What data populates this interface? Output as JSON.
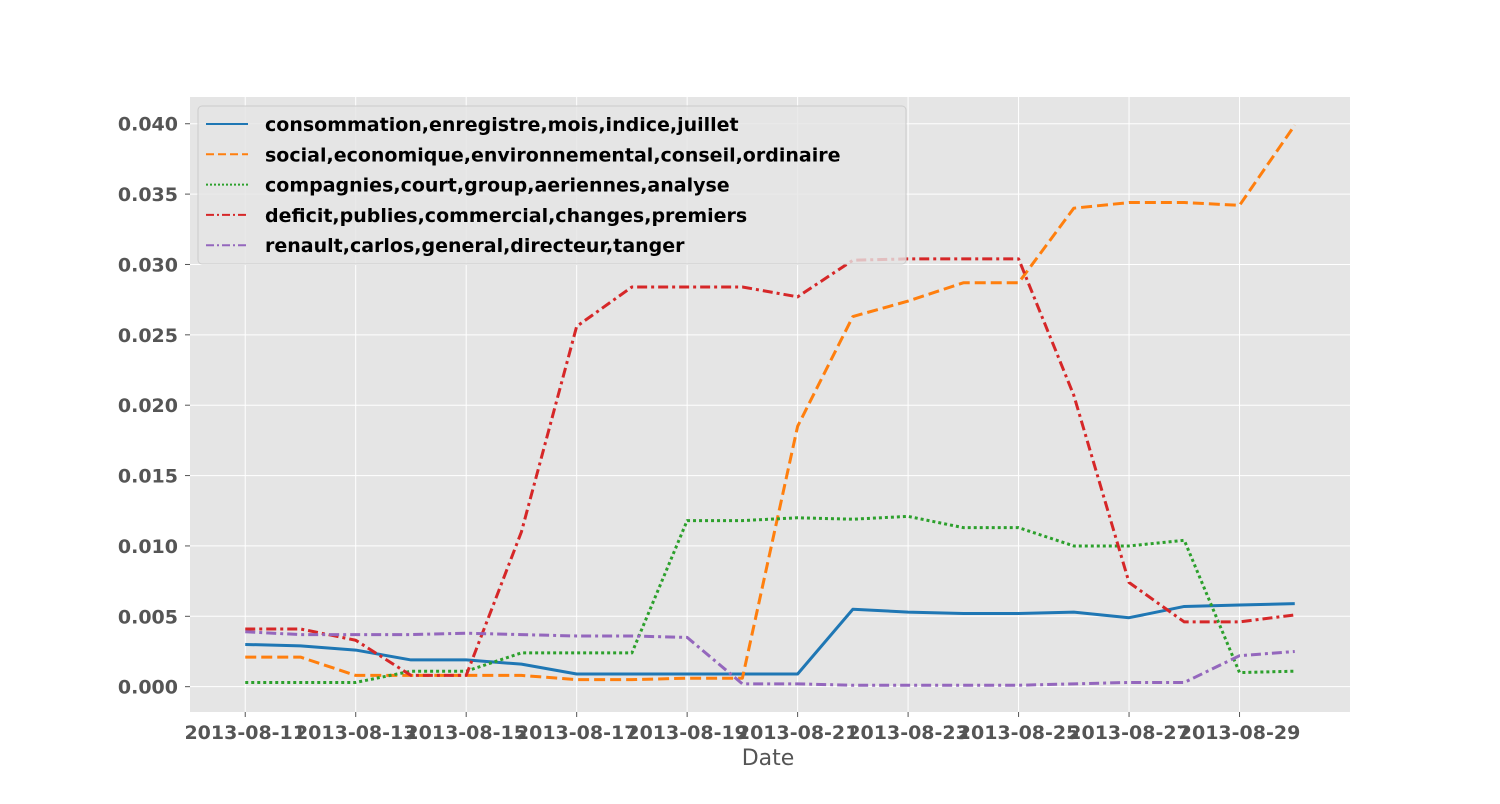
{
  "chart_data": {
    "type": "line",
    "title": "",
    "xlabel": "Date",
    "ylabel": "",
    "grid": true,
    "legend_position": "top-left",
    "xlim": [
      "2013-08-10",
      "2013-08-31"
    ],
    "ylim": [
      -0.0018,
      0.0419
    ],
    "x_ticks": [
      "2013-08-11",
      "2013-08-13",
      "2013-08-15",
      "2013-08-17",
      "2013-08-19",
      "2013-08-21",
      "2013-08-23",
      "2013-08-25",
      "2013-08-27",
      "2013-08-29"
    ],
    "y_ticks": [
      "0.000",
      "0.005",
      "0.010",
      "0.015",
      "0.020",
      "0.025",
      "0.030",
      "0.035",
      "0.040"
    ],
    "x": [
      "2013-08-11",
      "2013-08-12",
      "2013-08-13",
      "2013-08-14",
      "2013-08-15",
      "2013-08-16",
      "2013-08-17",
      "2013-08-18",
      "2013-08-19",
      "2013-08-20",
      "2013-08-21",
      "2013-08-22",
      "2013-08-23",
      "2013-08-24",
      "2013-08-25",
      "2013-08-26",
      "2013-08-27",
      "2013-08-28",
      "2013-08-29",
      "2013-08-30"
    ],
    "series": [
      {
        "name": "consommation,enregistre,mois,indice,juillet",
        "color": "#1f77b4",
        "dash": "solid",
        "values": [
          0.003,
          0.0029,
          0.0026,
          0.0019,
          0.0019,
          0.0016,
          0.0009,
          0.0009,
          0.0009,
          0.0009,
          0.0009,
          0.0055,
          0.0053,
          0.0052,
          0.0052,
          0.0053,
          0.0049,
          0.0057,
          0.0058,
          0.0059
        ]
      },
      {
        "name": "social,economique,environnemental,conseil,ordinaire",
        "color": "#ff7f0e",
        "dash": "dashed",
        "values": [
          0.0021,
          0.0021,
          0.0008,
          0.0008,
          0.0008,
          0.0008,
          0.0005,
          0.0005,
          0.0006,
          0.0006,
          0.0185,
          0.0263,
          0.0274,
          0.0287,
          0.0287,
          0.034,
          0.0344,
          0.0344,
          0.0342,
          0.0399
        ]
      },
      {
        "name": "compagnies,court,group,aeriennes,analyse",
        "color": "#2ca02c",
        "dash": "dotted",
        "values": [
          0.0003,
          0.0003,
          0.0003,
          0.0011,
          0.0011,
          0.0024,
          0.0024,
          0.0024,
          0.0118,
          0.0118,
          0.012,
          0.0119,
          0.0121,
          0.0113,
          0.0113,
          0.01,
          0.01,
          0.0104,
          0.001,
          0.0011
        ]
      },
      {
        "name": "deficit,publies,commercial,changes,premiers",
        "color": "#d62728",
        "dash": "dashdot",
        "values": [
          0.0041,
          0.0041,
          0.0033,
          0.0008,
          0.0008,
          0.011,
          0.0256,
          0.0284,
          0.0284,
          0.0284,
          0.0277,
          0.0303,
          0.0304,
          0.0304,
          0.0304,
          0.0207,
          0.0074,
          0.0046,
          0.0046,
          0.0051
        ]
      },
      {
        "name": "renault,carlos,general,directeur,tanger",
        "color": "#9467bd",
        "dash": "dashdot",
        "values": [
          0.0039,
          0.0037,
          0.0037,
          0.0037,
          0.0038,
          0.0037,
          0.0036,
          0.0036,
          0.0035,
          0.0002,
          0.0002,
          0.0001,
          0.0001,
          0.0001,
          0.0001,
          0.0002,
          0.0003,
          0.0003,
          0.0022,
          0.0025
        ]
      }
    ]
  }
}
